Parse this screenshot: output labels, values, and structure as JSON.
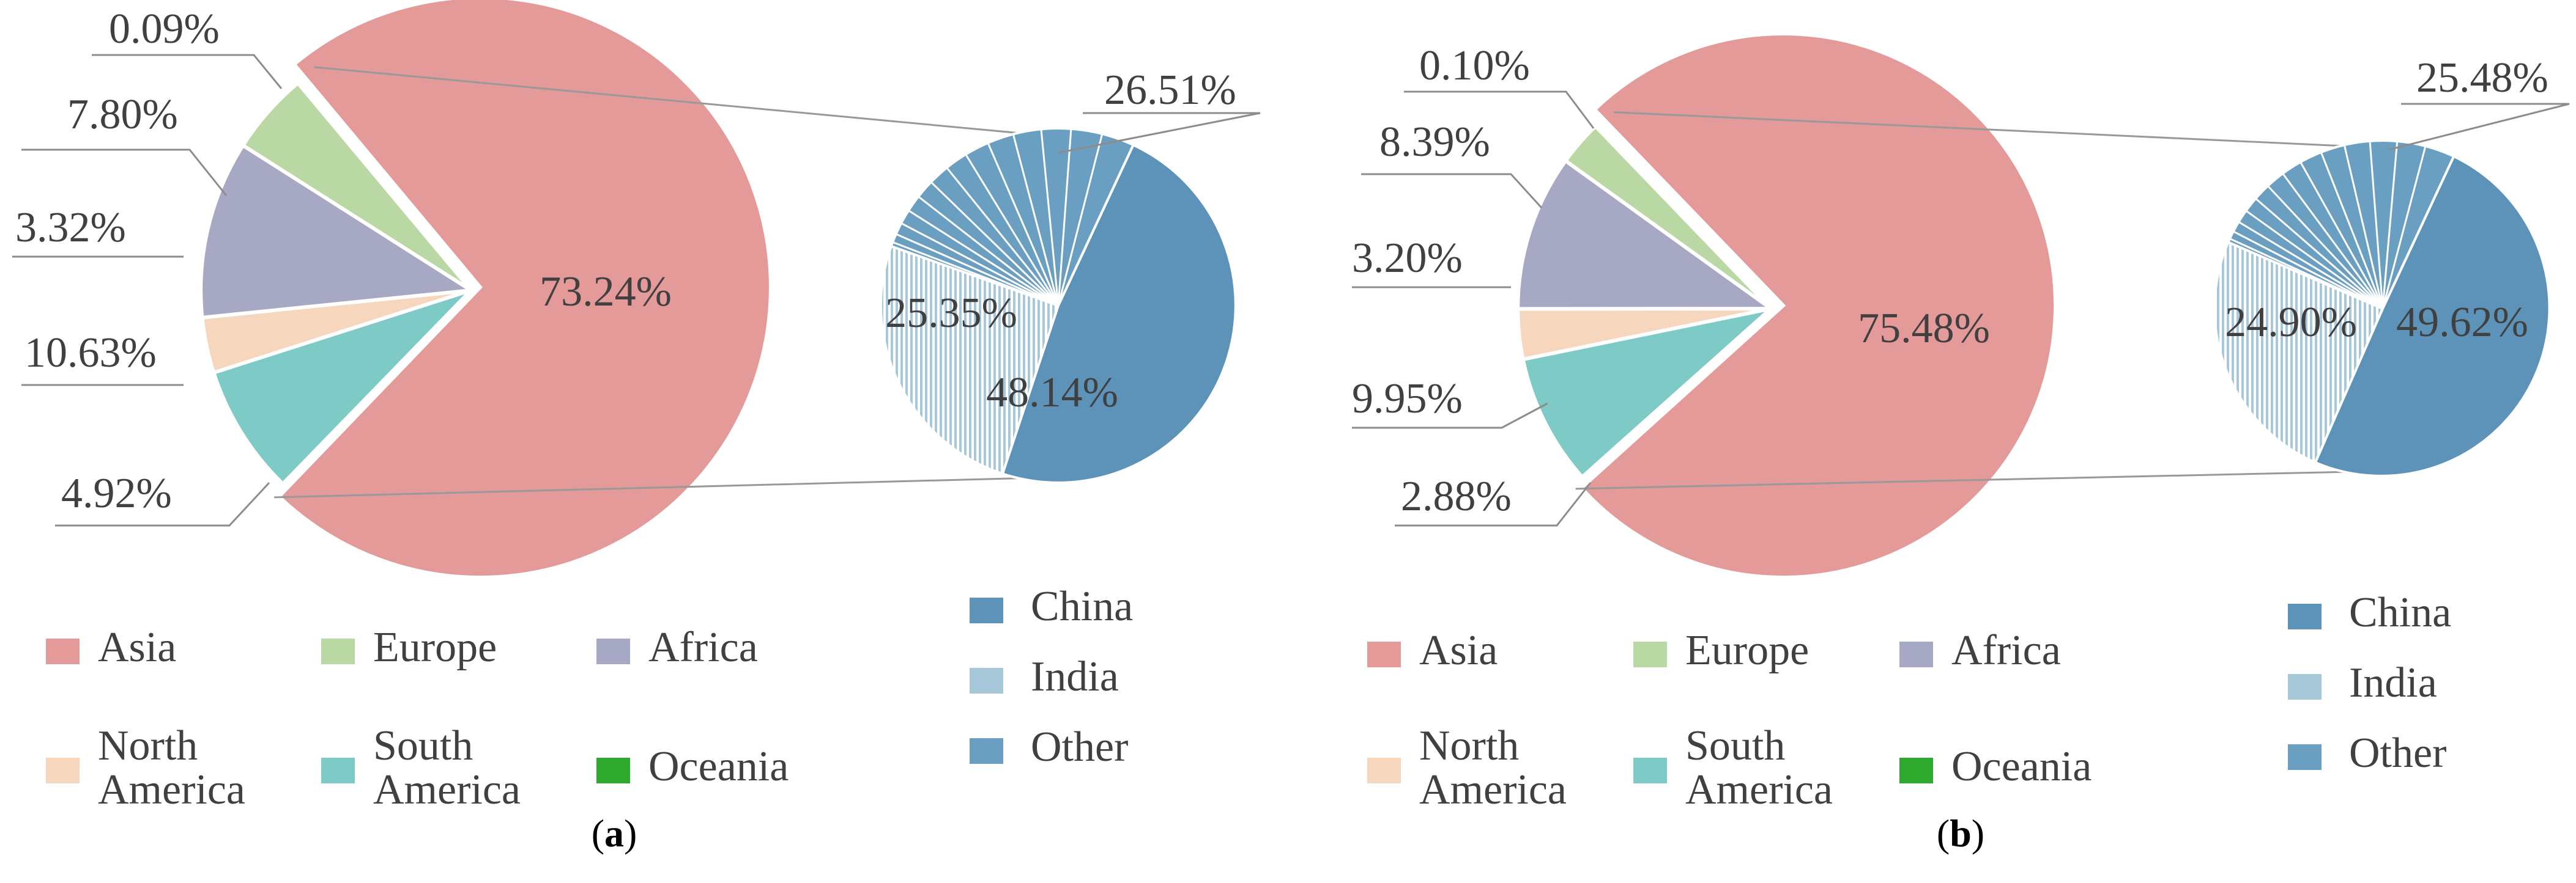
{
  "colors": {
    "Asia": "#e39a98",
    "Europe": "#b9d8a4",
    "Africa": "#a7a9c4",
    "North America": "#f6d7be",
    "South America": "#7ecac6",
    "Oceania": "#2eaa2e",
    "China": "#5d93b8",
    "India": "#a6c8d8",
    "Other": "#6a9fc2"
  },
  "chart_data": [
    {
      "type": "pie",
      "panel": "a",
      "caption": [
        "(",
        "a",
        ")"
      ],
      "slices": [
        {
          "name": "Asia",
          "value": 73.24,
          "label": "73.24%"
        },
        {
          "name": "Oceania",
          "value": 0.09,
          "label": "0.09%"
        },
        {
          "name": "South America",
          "value": 7.8,
          "label": "7.80%"
        },
        {
          "name": "North America",
          "value": 3.32,
          "label": "3.32%"
        },
        {
          "name": "Africa",
          "value": 10.63,
          "label": "10.63%"
        },
        {
          "name": "Europe",
          "value": 4.92,
          "label": "4.92%"
        }
      ],
      "breakdown": {
        "of": "Asia",
        "slices": [
          {
            "name": "China",
            "value": 48.14,
            "label": "48.14%"
          },
          {
            "name": "India",
            "value": 25.35,
            "label": "25.35%"
          },
          {
            "name": "Other",
            "value": 26.51,
            "label": "26.51%"
          }
        ]
      },
      "legend_main": [
        {
          "name": "Asia",
          "lines": [
            "Asia"
          ]
        },
        {
          "name": "Europe",
          "lines": [
            "Europe"
          ]
        },
        {
          "name": "Africa",
          "lines": [
            "Africa"
          ]
        },
        {
          "name": "North America",
          "lines": [
            "North",
            "America"
          ]
        },
        {
          "name": "South America",
          "lines": [
            "South",
            "America"
          ]
        },
        {
          "name": "Oceania",
          "lines": [
            "Oceania"
          ]
        }
      ],
      "legend_breakdown": [
        {
          "name": "China",
          "lines": [
            "China"
          ]
        },
        {
          "name": "India",
          "lines": [
            "India"
          ]
        },
        {
          "name": "Other",
          "lines": [
            "Other"
          ]
        }
      ]
    },
    {
      "type": "pie",
      "panel": "b",
      "caption": [
        "(",
        "b",
        ")"
      ],
      "slices": [
        {
          "name": "Asia",
          "value": 75.48,
          "label": "75.48%"
        },
        {
          "name": "Oceania",
          "value": 0.1,
          "label": "0.10%"
        },
        {
          "name": "South America",
          "value": 8.39,
          "label": "8.39%"
        },
        {
          "name": "North America",
          "value": 3.2,
          "label": "3.20%"
        },
        {
          "name": "Africa",
          "value": 9.95,
          "label": "9.95%"
        },
        {
          "name": "Europe",
          "value": 2.88,
          "label": "2.88%"
        }
      ],
      "breakdown": {
        "of": "Asia",
        "slices": [
          {
            "name": "China",
            "value": 49.62,
            "label": "49.62%"
          },
          {
            "name": "India",
            "value": 24.9,
            "label": "24.90%"
          },
          {
            "name": "Other",
            "value": 25.48,
            "label": "25.48%"
          }
        ]
      },
      "legend_main": [
        {
          "name": "Asia",
          "lines": [
            "Asia"
          ]
        },
        {
          "name": "Europe",
          "lines": [
            "Europe"
          ]
        },
        {
          "name": "Africa",
          "lines": [
            "Africa"
          ]
        },
        {
          "name": "North America",
          "lines": [
            "North",
            "America"
          ]
        },
        {
          "name": "South America",
          "lines": [
            "South",
            "America"
          ]
        },
        {
          "name": "Oceania",
          "lines": [
            "Oceania"
          ]
        }
      ],
      "legend_breakdown": [
        {
          "name": "China",
          "lines": [
            "China"
          ]
        },
        {
          "name": "India",
          "lines": [
            "India"
          ]
        },
        {
          "name": "Other",
          "lines": [
            "Other"
          ]
        }
      ]
    }
  ]
}
